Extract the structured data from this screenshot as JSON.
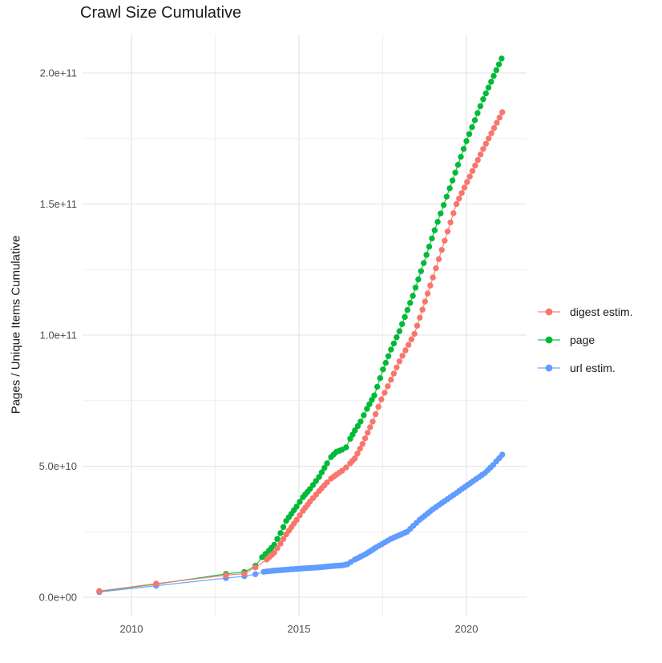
{
  "title": "Crawl Size Cumulative",
  "y_axis": {
    "label": "Pages / Unique Items Cumulative",
    "ticks": [
      {
        "value": 0,
        "label": "0.0e+00"
      },
      {
        "value": 50000000000.0,
        "label": "5.0e+10"
      },
      {
        "value": 100000000000.0,
        "label": "1.0e+11"
      },
      {
        "value": 150000000000.0,
        "label": "1.5e+11"
      },
      {
        "value": 200000000000.0,
        "label": "2.0e+11"
      }
    ]
  },
  "x_axis": {
    "ticks": [
      {
        "value": 2010,
        "label": "2010"
      },
      {
        "value": 2015,
        "label": "2015"
      },
      {
        "value": 2020,
        "label": "2020"
      }
    ]
  },
  "legend": [
    {
      "label": "digest estim.",
      "color": "#F8766D"
    },
    {
      "label": "page",
      "color": "#00BA38"
    },
    {
      "label": "url estim.",
      "color": "#619CFF"
    }
  ],
  "chart_data": {
    "type": "line",
    "title": "Crawl Size Cumulative",
    "xlabel": "",
    "ylabel": "Pages / Unique Items Cumulative",
    "x_unit": "year (decimal)",
    "y_unit": "pages / unique items (cumulative)",
    "xlim": [
      2008.5,
      2021.8
    ],
    "ylim": [
      0,
      215000000000.0
    ],
    "grid": true,
    "legend_position": "right",
    "x_minor_gridlines": [
      2012.5,
      2017.5
    ],
    "y_minor_gridlines": [
      25000000000.0,
      75000000000.0,
      125000000000.0,
      175000000000.0
    ],
    "point_style": "filled-circle",
    "series": [
      {
        "name": "digest estim.",
        "color": "#F8766D",
        "points": [
          [
            2009.04,
            2400000000.0
          ],
          [
            2010.74,
            5200000000.0
          ],
          [
            2012.82,
            8400000000.0
          ],
          [
            2013.37,
            9000000000.0
          ],
          [
            2013.7,
            11400000000.0
          ],
          [
            2014.04,
            14400000000.0
          ],
          [
            2014.26,
            17000000000.0
          ],
          [
            2014.45,
            20500000000.0
          ],
          [
            2014.62,
            24000000000.0
          ],
          [
            2014.93,
            29500000000.0
          ],
          [
            2015.12,
            33000000000.0
          ],
          [
            2015.33,
            36500000000.0
          ],
          [
            2015.6,
            40500000000.0
          ],
          [
            2015.84,
            43800000000.0
          ],
          [
            2015.96,
            45300000000.0
          ],
          [
            2016.12,
            46800000000.0
          ],
          [
            2016.29,
            48300000000.0
          ],
          [
            2016.41,
            49500000000.0
          ],
          [
            2016.53,
            51100000000.0
          ],
          [
            2016.67,
            53000000000.0
          ],
          [
            2016.9,
            58500000000.0
          ],
          [
            2017.2,
            67000000000.0
          ],
          [
            2017.46,
            75500000000.0
          ],
          [
            2017.75,
            83000000000.0
          ],
          [
            2018.0,
            90000000000.0
          ],
          [
            2018.45,
            100500000000.0
          ],
          [
            2019.0,
            122000000000.0
          ],
          [
            2019.7,
            150000000000.0
          ],
          [
            2020.5,
            171000000000.0
          ],
          [
            2021.07,
            185000000000.0
          ]
        ]
      },
      {
        "name": "page",
        "color": "#00BA38",
        "points": [
          [
            2009.04,
            2300000000.0
          ],
          [
            2010.74,
            5000000000.0
          ],
          [
            2012.82,
            8900000000.0
          ],
          [
            2013.37,
            9600000000.0
          ],
          [
            2013.7,
            12000000000.0
          ],
          [
            2013.9,
            15300000000.0
          ],
          [
            2014.1,
            17700000000.0
          ],
          [
            2014.26,
            20000000000.0
          ],
          [
            2014.45,
            24500000000.0
          ],
          [
            2014.62,
            29100000000.0
          ],
          [
            2014.93,
            34600000000.0
          ],
          [
            2015.12,
            38200000000.0
          ],
          [
            2015.33,
            41300000000.0
          ],
          [
            2015.6,
            45900000000.0
          ],
          [
            2015.84,
            51100000000.0
          ],
          [
            2015.96,
            53500000000.0
          ],
          [
            2016.12,
            55500000000.0
          ],
          [
            2016.29,
            56300000000.0
          ],
          [
            2016.41,
            57200000000.0
          ],
          [
            2016.53,
            60500000000.0
          ],
          [
            2016.67,
            63600000000.0
          ],
          [
            2016.84,
            67000000000.0
          ],
          [
            2017.03,
            71900000000.0
          ],
          [
            2017.25,
            77000000000.0
          ],
          [
            2017.51,
            86900000000.0
          ],
          [
            2017.75,
            94500000000.0
          ],
          [
            2018.0,
            101500000000.0
          ],
          [
            2018.4,
            115000000000.0
          ],
          [
            2019.05,
            140000000000.0
          ],
          [
            2019.5,
            156000000000.0
          ],
          [
            2020.0,
            174000000000.0
          ],
          [
            2020.5,
            190000000000.0
          ],
          [
            2021.05,
            205500000000.0
          ]
        ]
      },
      {
        "name": "url estim.",
        "color": "#619CFF",
        "points": [
          [
            2009.04,
            2000000000.0
          ],
          [
            2010.74,
            4400000000.0
          ],
          [
            2012.82,
            7300000000.0
          ],
          [
            2013.37,
            8000000000.0
          ],
          [
            2013.7,
            8800000000.0
          ],
          [
            2013.95,
            9700000000.0
          ],
          [
            2014.2,
            10100000000.0
          ],
          [
            2014.6,
            10500000000.0
          ],
          [
            2015.0,
            10900000000.0
          ],
          [
            2015.5,
            11300000000.0
          ],
          [
            2016.0,
            11900000000.0
          ],
          [
            2016.3,
            12200000000.0
          ],
          [
            2016.45,
            12600000000.0
          ],
          [
            2016.55,
            13500000000.0
          ],
          [
            2016.67,
            14400000000.0
          ],
          [
            2017.0,
            16500000000.0
          ],
          [
            2017.3,
            19000000000.0
          ],
          [
            2017.75,
            22300000000.0
          ],
          [
            2018.23,
            25000000000.0
          ],
          [
            2018.6,
            29500000000.0
          ],
          [
            2019.0,
            33600000000.0
          ],
          [
            2019.7,
            39800000000.0
          ],
          [
            2020.2,
            44300000000.0
          ],
          [
            2020.55,
            47400000000.0
          ],
          [
            2020.8,
            50500000000.0
          ],
          [
            2021.07,
            54400000000.0
          ]
        ]
      }
    ]
  }
}
